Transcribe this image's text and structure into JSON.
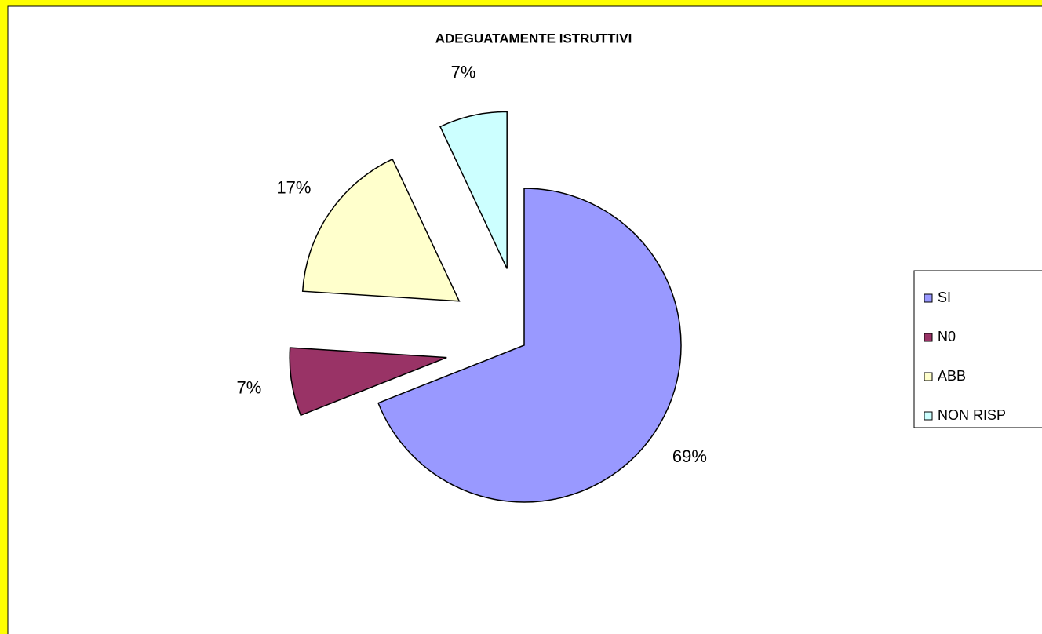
{
  "chart_data": {
    "type": "pie",
    "title": "ADEGUATAMENTE ISTRUTTIVI",
    "categories": [
      "SI",
      "N0",
      "ABB",
      "NON RISP"
    ],
    "values": [
      69,
      7,
      17,
      7
    ],
    "value_labels": [
      "69%",
      "7%",
      "17%",
      "7%"
    ],
    "colors": [
      "#9999ff",
      "#993366",
      "#ffffcc",
      "#ccffff"
    ],
    "legend": "right"
  }
}
